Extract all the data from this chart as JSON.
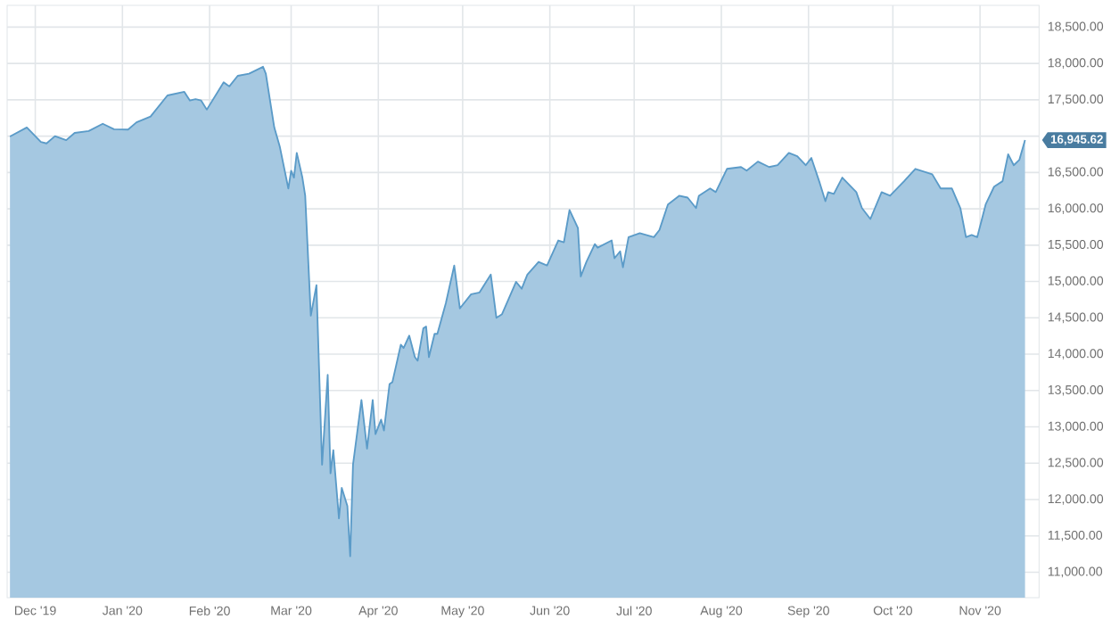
{
  "chart_data": {
    "type": "area",
    "color": "#5b9bc8",
    "grid": true,
    "marker": "none",
    "line_style": "solid",
    "xlim": [
      "2019-11-21",
      "2020-11-22"
    ],
    "xticks": [
      {
        "value": "2019-12-01",
        "label": "Dec '19"
      },
      {
        "value": "2020-01-01",
        "label": "Jan '20"
      },
      {
        "value": "2020-02-01",
        "label": "Feb '20"
      },
      {
        "value": "2020-03-01",
        "label": "Mar '20"
      },
      {
        "value": "2020-04-01",
        "label": "Apr '20"
      },
      {
        "value": "2020-05-01",
        "label": "May '20"
      },
      {
        "value": "2020-06-01",
        "label": "Jun '20"
      },
      {
        "value": "2020-07-01",
        "label": "Jul '20"
      },
      {
        "value": "2020-08-01",
        "label": "Aug '20"
      },
      {
        "value": "2020-09-01",
        "label": "Sep '20"
      },
      {
        "value": "2020-10-01",
        "label": "Oct '20"
      },
      {
        "value": "2020-11-01",
        "label": "Nov '20"
      }
    ],
    "ylim": [
      10650,
      18800
    ],
    "yticks": [
      {
        "value": 11000,
        "label": "11,000.00"
      },
      {
        "value": 11500,
        "label": "11,500.00"
      },
      {
        "value": 12000,
        "label": "12,000.00"
      },
      {
        "value": 12500,
        "label": "12,500.00"
      },
      {
        "value": 13000,
        "label": "13,000.00"
      },
      {
        "value": 13500,
        "label": "13,500.00"
      },
      {
        "value": 14000,
        "label": "14,000.00"
      },
      {
        "value": 14500,
        "label": "14,500.00"
      },
      {
        "value": 15000,
        "label": "15,000.00"
      },
      {
        "value": 15500,
        "label": "15,500.00"
      },
      {
        "value": 16000,
        "label": "16,000.00"
      },
      {
        "value": 16500,
        "label": "16,500.00"
      },
      {
        "value": 17000,
        "label": null
      },
      {
        "value": 17500,
        "label": "17,500.00"
      },
      {
        "value": 18000,
        "label": "18,000.00"
      },
      {
        "value": 18500,
        "label": "18,500.00"
      }
    ],
    "x": [
      "2019-11-22",
      "2019-11-28",
      "2019-12-03",
      "2019-12-05",
      "2019-12-08",
      "2019-12-12",
      "2019-12-15",
      "2019-12-20",
      "2019-12-25",
      "2019-12-29",
      "2020-01-03",
      "2020-01-06",
      "2020-01-11",
      "2020-01-17",
      "2020-01-23",
      "2020-01-25",
      "2020-01-27",
      "2020-01-29",
      "2020-01-31",
      "2020-02-06",
      "2020-02-08",
      "2020-02-11",
      "2020-02-15",
      "2020-02-20",
      "2020-02-21",
      "2020-02-24",
      "2020-02-26",
      "2020-02-29",
      "2020-03-01",
      "2020-03-02",
      "2020-03-03",
      "2020-03-05",
      "2020-03-06",
      "2020-03-08",
      "2020-03-10",
      "2020-03-12",
      "2020-03-14",
      "2020-03-15",
      "2020-03-16",
      "2020-03-18",
      "2020-03-19",
      "2020-03-21",
      "2020-03-22",
      "2020-03-23",
      "2020-03-26",
      "2020-03-28",
      "2020-03-30",
      "2020-03-31",
      "2020-04-02",
      "2020-04-03",
      "2020-04-05",
      "2020-04-06",
      "2020-04-09",
      "2020-04-10",
      "2020-04-12",
      "2020-04-14",
      "2020-04-15",
      "2020-04-17",
      "2020-04-18",
      "2020-04-19",
      "2020-04-21",
      "2020-04-22",
      "2020-04-25",
      "2020-04-28",
      "2020-04-30",
      "2020-05-04",
      "2020-05-07",
      "2020-05-11",
      "2020-05-13",
      "2020-05-15",
      "2020-05-20",
      "2020-05-22",
      "2020-05-24",
      "2020-05-28",
      "2020-05-31",
      "2020-06-04",
      "2020-06-06",
      "2020-06-08",
      "2020-06-11",
      "2020-06-12",
      "2020-06-14",
      "2020-06-17",
      "2020-06-18",
      "2020-06-23",
      "2020-06-24",
      "2020-06-26",
      "2020-06-27",
      "2020-06-29",
      "2020-07-03",
      "2020-07-08",
      "2020-07-10",
      "2020-07-13",
      "2020-07-17",
      "2020-07-20",
      "2020-07-23",
      "2020-07-24",
      "2020-07-28",
      "2020-07-30",
      "2020-08-03",
      "2020-08-08",
      "2020-08-10",
      "2020-08-14",
      "2020-08-18",
      "2020-08-21",
      "2020-08-25",
      "2020-08-28",
      "2020-08-31",
      "2020-09-02",
      "2020-09-05",
      "2020-09-07",
      "2020-09-08",
      "2020-09-10",
      "2020-09-13",
      "2020-09-18",
      "2020-09-20",
      "2020-09-23",
      "2020-09-27",
      "2020-09-30",
      "2020-10-05",
      "2020-10-09",
      "2020-10-15",
      "2020-10-18",
      "2020-10-22",
      "2020-10-25",
      "2020-10-27",
      "2020-10-29",
      "2020-10-31",
      "2020-11-03",
      "2020-11-06",
      "2020-11-09",
      "2020-11-11",
      "2020-11-13",
      "2020-11-15",
      "2020-11-17"
    ],
    "values": [
      16995,
      17120,
      16920,
      16900,
      17000,
      16945,
      17045,
      17070,
      17170,
      17095,
      17090,
      17190,
      17270,
      17560,
      17610,
      17490,
      17510,
      17490,
      17365,
      17740,
      17685,
      17830,
      17860,
      17955,
      17860,
      17120,
      16850,
      16280,
      16525,
      16430,
      16770,
      16430,
      16180,
      14530,
      14950,
      12480,
      13715,
      12360,
      12680,
      11740,
      12160,
      11910,
      11220,
      12480,
      13370,
      12700,
      13370,
      12900,
      13100,
      12950,
      13590,
      13615,
      14130,
      14085,
      14255,
      13960,
      13910,
      14355,
      14380,
      13960,
      14280,
      14280,
      14700,
      15220,
      14630,
      14825,
      14850,
      15095,
      14500,
      14550,
      14995,
      14900,
      15095,
      15270,
      15220,
      15565,
      15540,
      15985,
      15735,
      15070,
      15270,
      15515,
      15465,
      15565,
      15320,
      15415,
      15195,
      15610,
      15665,
      15610,
      15710,
      16060,
      16180,
      16155,
      16010,
      16180,
      16280,
      16230,
      16550,
      16575,
      16525,
      16650,
      16575,
      16600,
      16770,
      16725,
      16600,
      16700,
      16355,
      16105,
      16230,
      16205,
      16430,
      16230,
      16010,
      15860,
      16230,
      16180,
      16380,
      16550,
      16475,
      16280,
      16280,
      16010,
      15610,
      15640,
      15610,
      16060,
      16305,
      16380,
      16750,
      16600,
      16675,
      16945.62
    ],
    "annotations": [
      "16,945.62"
    ]
  }
}
